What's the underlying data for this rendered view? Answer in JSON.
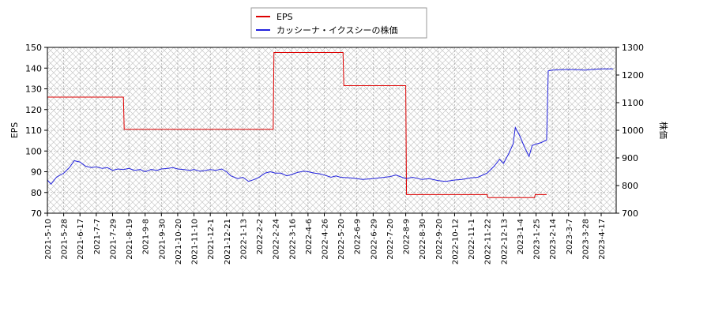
{
  "chart_data": {
    "type": "line",
    "xlim": [
      "2021-5-10",
      "2023-5-1"
    ],
    "xticks": [
      "2021-5-10",
      "2021-5-28",
      "2021-6-17",
      "2021-7-7",
      "2021-7-29",
      "2021-8-19",
      "2021-9-8",
      "2021-9-30",
      "2021-10-20",
      "2021-11-10",
      "2021-12-1",
      "2021-12-21",
      "2022-1-13",
      "2022-2-2",
      "2022-2-24",
      "2022-3-16",
      "2022-4-6",
      "2022-4-26",
      "2022-5-20",
      "2022-6-9",
      "2022-6-29",
      "2022-7-20",
      "2022-8-9",
      "2022-8-30",
      "2022-9-20",
      "2022-10-12",
      "2022-11-1",
      "2022-11-22",
      "2022-12-13",
      "2023-1-4",
      "2023-1-25",
      "2023-2-14",
      "2023-3-7",
      "2023-3-28",
      "2023-4-17"
    ],
    "ylabel": "EPS",
    "y2label": "株価",
    "ylim": [
      70,
      150
    ],
    "yticks": [
      70,
      80,
      90,
      100,
      110,
      120,
      130,
      140,
      150
    ],
    "y2lim": [
      700,
      1300
    ],
    "y2ticks": [
      700,
      800,
      900,
      1000,
      1100,
      1200,
      1300
    ],
    "grid": true,
    "series": [
      {
        "name": "EPS",
        "color": "#dd0000",
        "axis": "y",
        "x": [
          "2021-5-10",
          "2021-8-12",
          "2021-8-13",
          "2022-2-21",
          "2022-2-22",
          "2022-5-23",
          "2022-5-24",
          "2022-8-9",
          "2022-8-10",
          "2022-11-22",
          "2022-11-23",
          "2023-1-23",
          "2023-1-24",
          "2023-2-7"
        ],
        "values": [
          126,
          126,
          110.5,
          110.5,
          147.5,
          147.5,
          131.5,
          131.5,
          79,
          79,
          77.5,
          77.5,
          79,
          79
        ]
      },
      {
        "name": "カッシーナ・イクスシーの株価",
        "color": "#2222dd",
        "axis": "y2",
        "x": [
          "2021-5-10",
          "2021-5-14",
          "2021-5-20",
          "2021-5-28",
          "2021-6-4",
          "2021-6-10",
          "2021-6-17",
          "2021-6-24",
          "2021-7-1",
          "2021-7-7",
          "2021-7-15",
          "2021-7-22",
          "2021-7-29",
          "2021-8-5",
          "2021-8-12",
          "2021-8-19",
          "2021-8-26",
          "2021-9-2",
          "2021-9-8",
          "2021-9-16",
          "2021-9-24",
          "2021-9-30",
          "2021-10-8",
          "2021-10-14",
          "2021-10-20",
          "2021-10-28",
          "2021-11-5",
          "2021-11-10",
          "2021-11-18",
          "2021-11-25",
          "2021-12-1",
          "2021-12-8",
          "2021-12-15",
          "2021-12-21",
          "2021-12-27",
          "2022-1-6",
          "2022-1-13",
          "2022-1-20",
          "2022-1-27",
          "2022-2-2",
          "2022-2-10",
          "2022-2-17",
          "2022-2-24",
          "2022-3-3",
          "2022-3-10",
          "2022-3-16",
          "2022-3-24",
          "2022-4-1",
          "2022-4-6",
          "2022-4-14",
          "2022-4-21",
          "2022-4-26",
          "2022-5-6",
          "2022-5-13",
          "2022-5-20",
          "2022-6-1",
          "2022-6-9",
          "2022-6-16",
          "2022-6-29",
          "2022-7-7",
          "2022-7-20",
          "2022-7-28",
          "2022-8-9",
          "2022-8-18",
          "2022-8-30",
          "2022-9-8",
          "2022-9-20",
          "2022-9-30",
          "2022-10-12",
          "2022-10-21",
          "2022-11-1",
          "2022-11-10",
          "2022-11-22",
          "2022-12-1",
          "2022-12-8",
          "2022-12-13",
          "2022-12-20",
          "2022-12-26",
          "2022-12-29",
          "2023-1-4",
          "2023-1-10",
          "2023-1-16",
          "2023-1-20",
          "2023-1-25",
          "2023-1-31",
          "2023-2-7",
          "2023-2-9",
          "2023-2-14",
          "2023-3-7",
          "2023-3-28",
          "2023-4-17",
          "2023-4-28"
        ],
        "values": [
          820,
          805,
          830,
          845,
          865,
          890,
          885,
          870,
          865,
          868,
          862,
          865,
          855,
          860,
          858,
          862,
          855,
          858,
          850,
          858,
          855,
          860,
          862,
          865,
          860,
          858,
          855,
          858,
          852,
          855,
          858,
          855,
          860,
          850,
          835,
          825,
          830,
          815,
          822,
          830,
          845,
          850,
          845,
          845,
          835,
          840,
          848,
          852,
          850,
          845,
          842,
          838,
          830,
          835,
          830,
          828,
          825,
          822,
          825,
          828,
          832,
          838,
          825,
          830,
          822,
          825,
          818,
          815,
          820,
          822,
          828,
          830,
          845,
          870,
          895,
          880,
          915,
          950,
          1010,
          980,
          940,
          905,
          945,
          950,
          955,
          965,
          1215,
          1218,
          1220,
          1218,
          1222,
          1222
        ]
      }
    ]
  }
}
